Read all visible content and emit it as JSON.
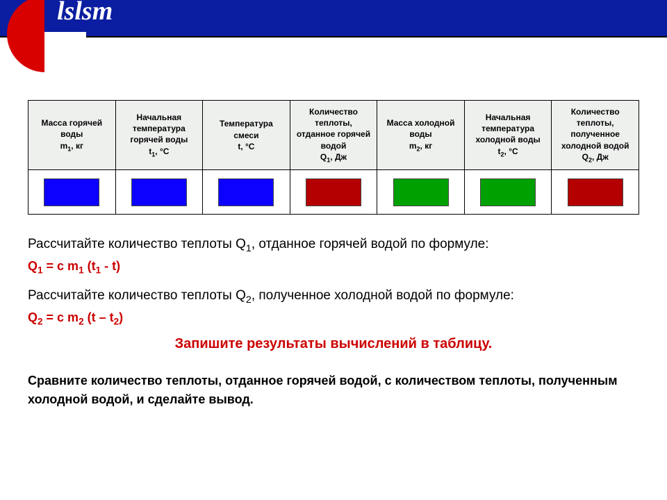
{
  "logo": {
    "text": "lslsm"
  },
  "table": {
    "headers": [
      "Масса горячей воды<br>m<sub>1</sub>, кг",
      "Начальная температура горячей воды<br>t<sub>1</sub>, °C",
      "Температура смеси<br>t, °C",
      "Количество теплоты, отданное горячей водой<br>Q<sub>1</sub>, Дж",
      "Масса холодной воды<br>m<sub>2</sub>, кг",
      "Начальная температура холодной воды<br>t<sub>2</sub>, °C",
      "Количество теплоты, полученное холодной водой<br>Q<sub>2</sub>, Дж"
    ],
    "cell_colors": [
      "#0c00ff",
      "#0c00ff",
      "#0c00ff",
      "#b40000",
      "#00a000",
      "#00a000",
      "#b40000"
    ],
    "header_bg": "#eef0ee",
    "border_color": "#000000"
  },
  "text": {
    "p1": "Рассчитайте количество теплоты Q<sub>1</sub>, отданное горячей водой  по формуле:",
    "f1": "Q<sub>1</sub> = c m<sub>1</sub> (t<sub>1</sub>  - t)",
    "p2": "Рассчитайте количество теплоты Q<sub>2</sub>, полученное холодной водой  по формуле:",
    "f2": "Q<sub>2</sub> = c m<sub>2</sub> (t – t<sub>2</sub>)",
    "instruction": "Запишите результаты вычислений в таблицу.",
    "conclusion": "Сравните количество теплоты, отданное горячей водой, с количеством теплоты, полученным холодной водой, и сделайте вывод."
  },
  "colors": {
    "header_bar": "#0b1da0",
    "logo_red": "#d90000",
    "formula_red": "#cc0000",
    "body_text": "#000000"
  }
}
